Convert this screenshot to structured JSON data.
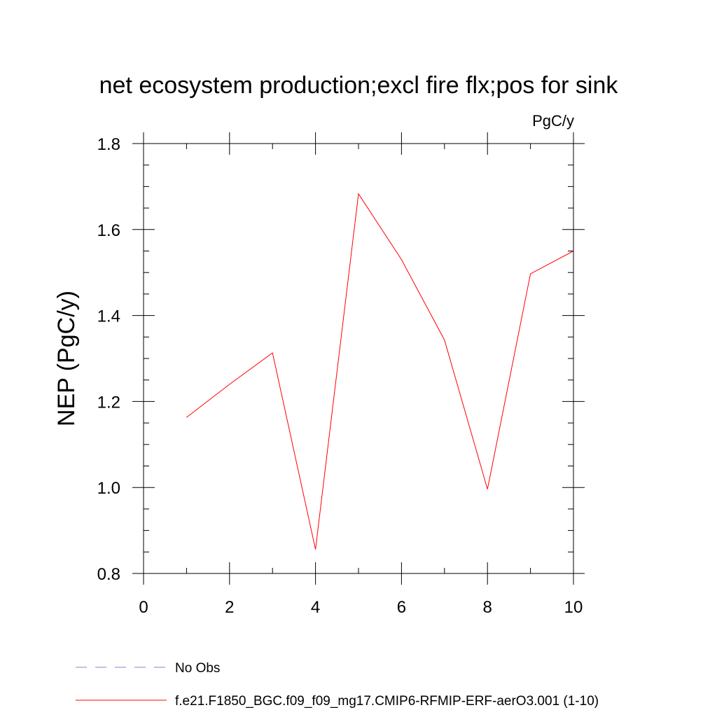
{
  "chart_data": {
    "type": "line",
    "title": "net ecosystem production;excl fire flx;pos for sink",
    "units_label": "PgC/y",
    "xlabel": "",
    "ylabel": "NEP  (PgC/y)",
    "xlim": [
      0,
      10
    ],
    "ylim": [
      0.8,
      1.8
    ],
    "x_ticks": [
      0,
      2,
      4,
      6,
      8,
      10
    ],
    "x_tick_labels": [
      "0",
      "2",
      "4",
      "6",
      "8",
      "10"
    ],
    "x_minor_step": 1,
    "y_ticks": [
      0.8,
      1.0,
      1.2,
      1.4,
      1.6,
      1.8
    ],
    "y_tick_labels": [
      "0.8",
      "1.0",
      "1.2",
      "1.4",
      "1.6",
      "1.8"
    ],
    "y_minor_step": 0.05,
    "grid": false,
    "legend_position": "bottom",
    "series": [
      {
        "name": "f.e21.F1850_BGC.f09_f09_mg17.CMIP6-RFMIP-ERF-aerO3.001 (1-10)",
        "color": "#ff0000",
        "style": "solid",
        "x": [
          1,
          2,
          3,
          4,
          5,
          6,
          7,
          8,
          9,
          10
        ],
        "y": [
          1.163,
          1.24,
          1.313,
          0.856,
          1.683,
          1.53,
          1.343,
          0.996,
          1.497,
          1.55
        ]
      }
    ],
    "legend": [
      {
        "label": "No Obs",
        "color": "#8a82c8",
        "style": "dashed"
      },
      {
        "label": "f.e21.F1850_BGC.f09_f09_mg17.CMIP6-RFMIP-ERF-aerO3.001 (1-10)",
        "color": "#ff0000",
        "style": "solid"
      }
    ]
  }
}
